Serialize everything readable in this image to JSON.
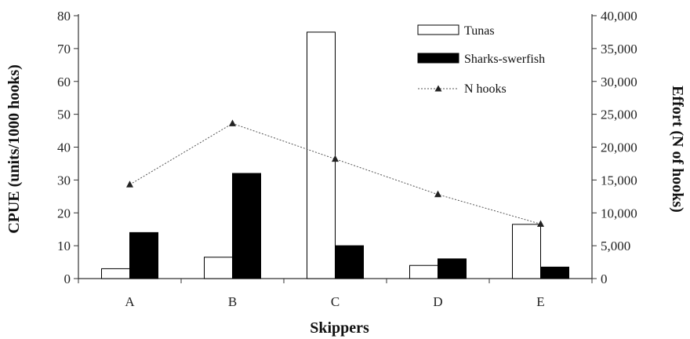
{
  "chart_data": {
    "type": "bar",
    "categories": [
      "A",
      "B",
      "C",
      "D",
      "E"
    ],
    "series": [
      {
        "name": "Tunas",
        "kind": "bar",
        "axis": "left",
        "color": "#ffffff",
        "values": [
          3,
          6.5,
          75,
          4,
          16.5
        ]
      },
      {
        "name": "Sharks-swordfish",
        "kind": "bar",
        "axis": "left",
        "color": "#000000",
        "values": [
          14,
          32,
          10,
          6,
          3.5
        ]
      },
      {
        "name": "N hooks",
        "kind": "line",
        "axis": "right",
        "color": "#555555",
        "marker": "triangle",
        "values": [
          14300,
          23600,
          18200,
          12800,
          8300
        ]
      }
    ],
    "xlabel": "Skippers",
    "ylabel": "CPUE (units/1000 hooks)",
    "y2label": "Effort (N of hooks)",
    "ylim": [
      0,
      80
    ],
    "y2lim": [
      0,
      40000
    ],
    "yticks": [
      "0",
      "10",
      "20",
      "30",
      "40",
      "50",
      "60",
      "70",
      "80"
    ],
    "y2ticks": [
      "0",
      "5,000",
      "10,000",
      "15,000",
      "20,000",
      "25,000",
      "30,000",
      "35,000",
      "40,000"
    ],
    "grid": false,
    "legend": {
      "position": "top-right",
      "items": [
        "Tunas",
        "Sharks-swerfish",
        "N hooks"
      ]
    }
  }
}
